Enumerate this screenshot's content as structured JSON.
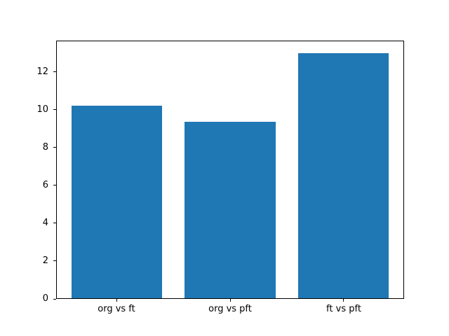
{
  "chart_data": {
    "type": "bar",
    "title": "",
    "xlabel": "",
    "ylabel": "",
    "categories": [
      "org vs ft",
      "org vs pft",
      "ft vs pft"
    ],
    "values": [
      10.24,
      9.39,
      13.0
    ],
    "ylim": [
      0,
      13.65
    ],
    "yticks": [
      0,
      2,
      4,
      6,
      8,
      10,
      12
    ],
    "ytick_labels": [
      "0",
      "2",
      "4",
      "6",
      "8",
      "10",
      "12"
    ],
    "xlim": [
      -0.531,
      2.531
    ],
    "bar_width_fraction": 0.8,
    "bar_color": "#1f77b4",
    "axis_color": "#000000",
    "background_color": "#ffffff",
    "grid": false,
    "legend": null
  }
}
